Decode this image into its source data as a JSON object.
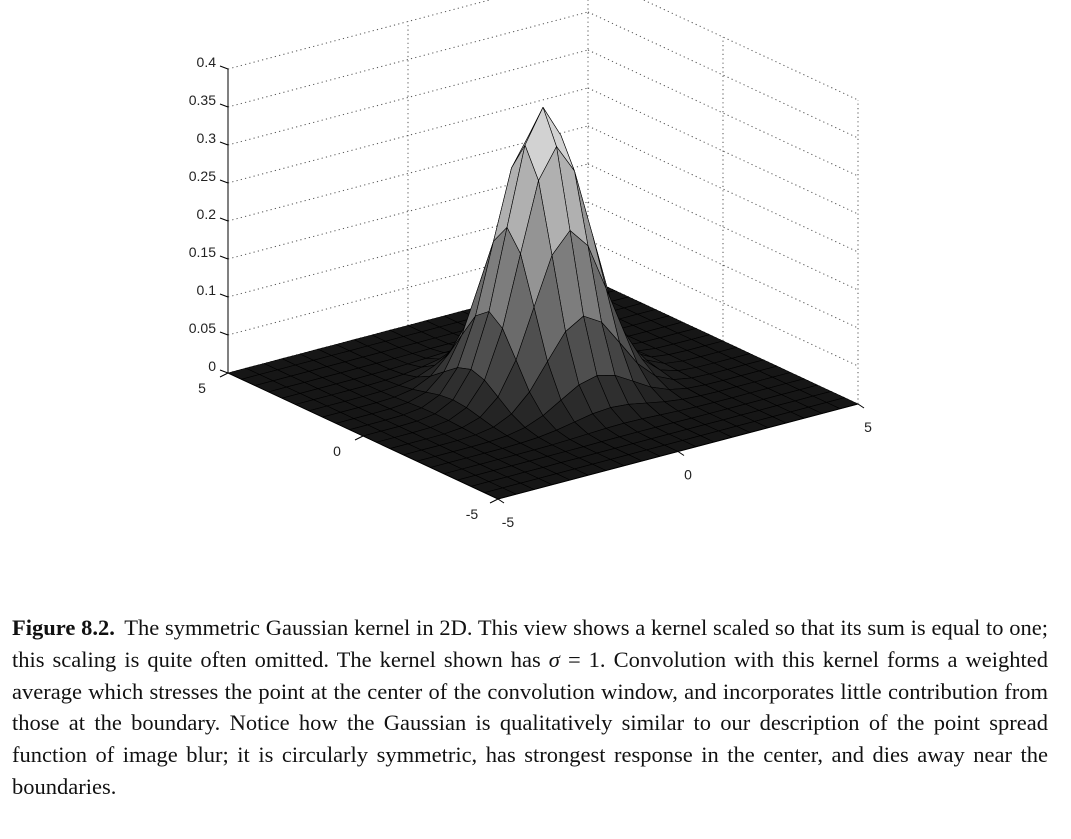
{
  "chart_data": {
    "type": "surface",
    "function": "gaussian-2d",
    "sigma": 1,
    "x": [
      -5,
      -4.5,
      -4,
      -3.5,
      -3,
      -2.5,
      -2,
      -1.5,
      -1,
      -0.5,
      0,
      0.5,
      1,
      1.5,
      2,
      2.5,
      3,
      3.5,
      4,
      4.5,
      5
    ],
    "y": [
      -5,
      -4.5,
      -4,
      -3.5,
      -3,
      -2.5,
      -2,
      -1.5,
      -1,
      -0.5,
      0,
      0.5,
      1,
      1.5,
      2,
      2.5,
      3,
      3.5,
      4,
      4.5,
      5
    ],
    "z_peak": 0.37,
    "xlim": [
      -5,
      5
    ],
    "ylim": [
      -5,
      5
    ],
    "zlim": [
      0,
      0.4
    ],
    "x_ticks": [
      "-5",
      "0",
      "5"
    ],
    "y_ticks": [
      "-5",
      "0",
      "5"
    ],
    "z_ticks": [
      "0",
      "0.05",
      "0.1",
      "0.15",
      "0.2",
      "0.25",
      "0.3",
      "0.35",
      "0.4"
    ],
    "grid": true,
    "colormap": "gray",
    "title": "",
    "xlabel": "",
    "ylabel": "",
    "zlabel": ""
  },
  "caption": {
    "label": "Figure 8.2.",
    "text_before_sigma": "The symmetric Gaussian kernel in 2D. This view shows a kernel scaled so that its sum is equal to one; this scaling is quite often omitted. The kernel shown has",
    "sigma_symbol": "σ",
    "sigma_equals": "= 1.",
    "text_after_sigma": "Convolution with this kernel forms a weighted average which stresses the point at the center of the convolution window, and incorporates little contribution from those at the boundary. Notice how the Gaussian is qualitatively similar to our description of the point spread function of image blur; it is circularly symmetric, has strongest response in the center, and dies away near the boundaries."
  }
}
